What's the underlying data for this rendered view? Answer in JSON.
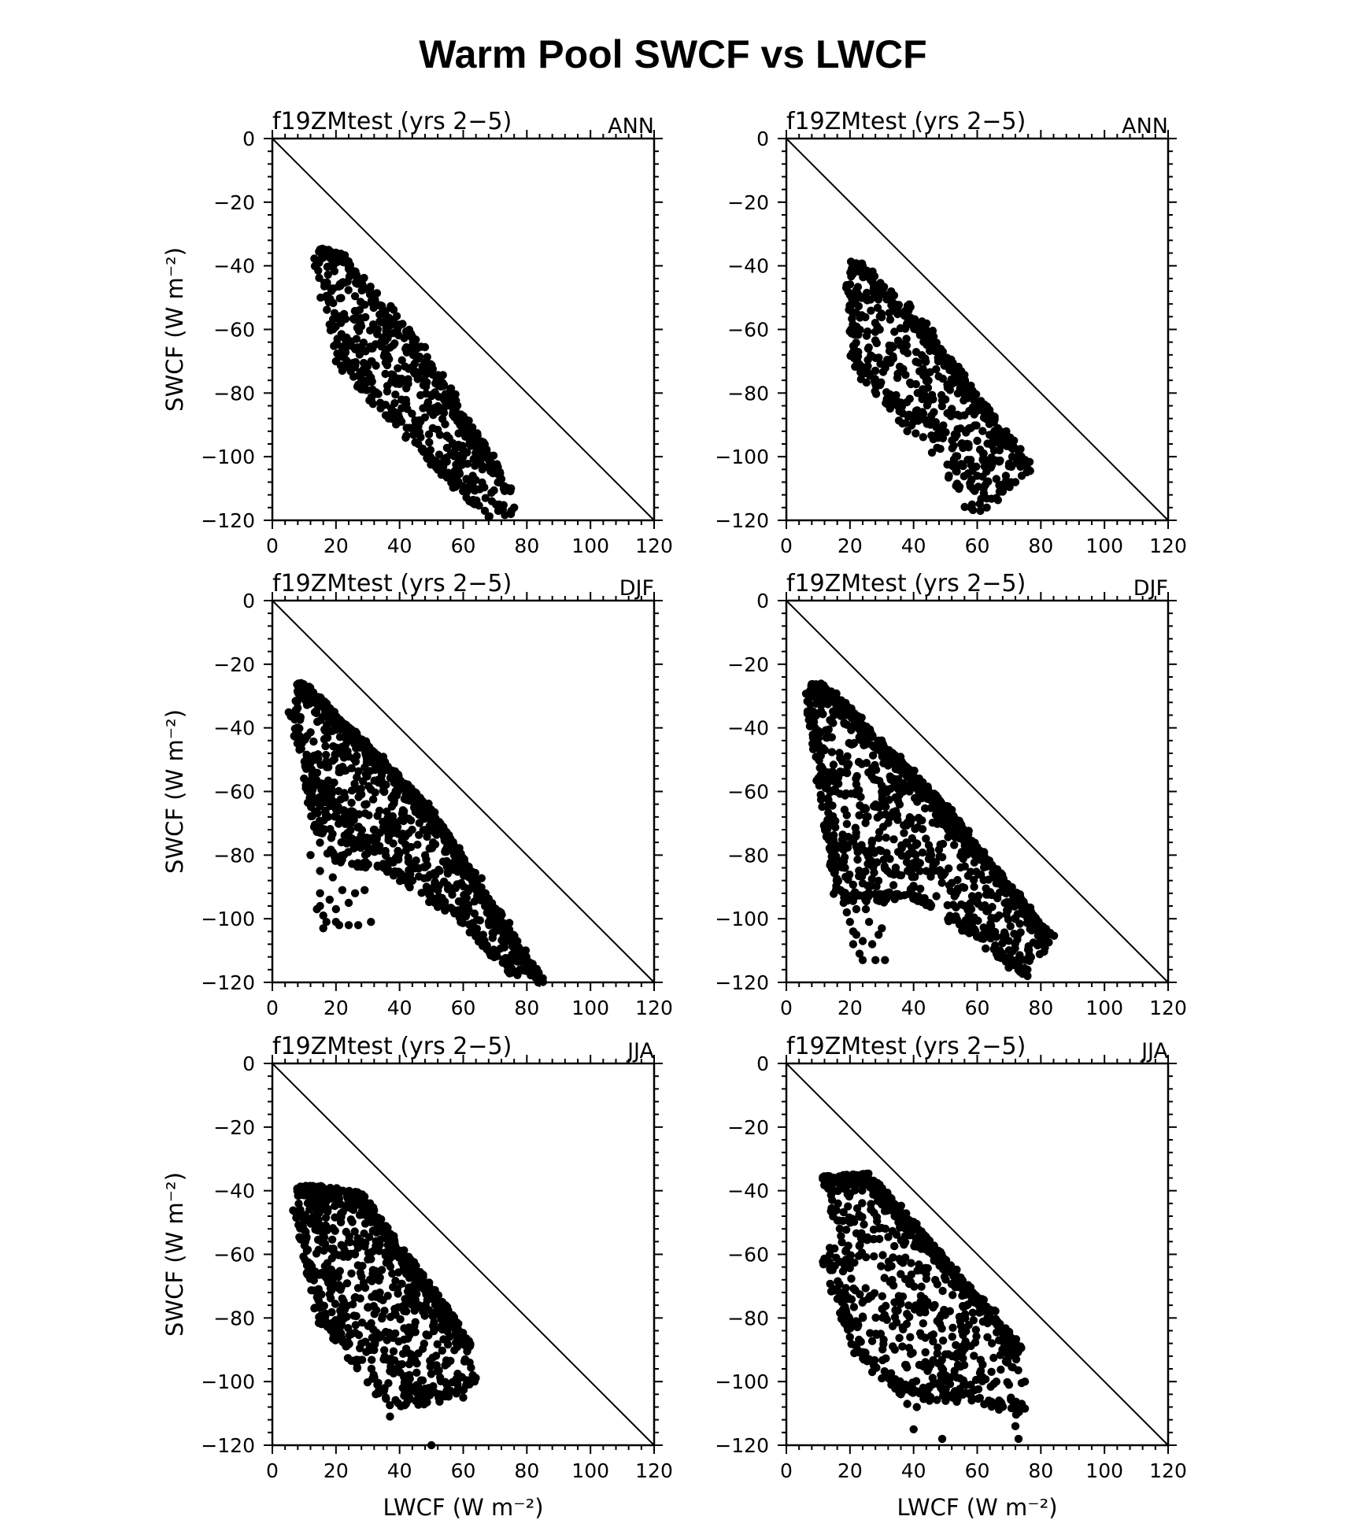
{
  "figure_title": "Warm Pool SWCF vs LWCF",
  "chart_data": [
    {
      "type": "scatter",
      "panel": "ANN",
      "title": "f19ZMtest (yrs 2−5)",
      "season": "ANN",
      "xlabel": "",
      "ylabel": "SWCF (W m⁻²)",
      "xlim": [
        0,
        120
      ],
      "ylim": [
        -120,
        0
      ],
      "xticks": [
        "0",
        "20",
        "40",
        "60",
        "80",
        "100",
        "120"
      ],
      "yticks": [
        "0",
        "−20",
        "−40",
        "−60",
        "−80",
        "−100",
        "−120"
      ],
      "reference_line": "y = −x",
      "cloud": {
        "n": 650,
        "corners": [
          [
            15,
            -34
          ],
          [
            22,
            -36
          ],
          [
            70,
            -100
          ],
          [
            76,
            -119
          ],
          [
            67,
            -119
          ],
          [
            20,
            -72
          ],
          [
            19,
            -63
          ],
          [
            15,
            -38
          ]
        ],
        "front": [
          [
            15,
            -34
          ],
          [
            22,
            -36
          ],
          [
            45,
            -62
          ],
          [
            75,
            -110
          ]
        ],
        "back": [
          [
            14,
            -38
          ],
          [
            20,
            -65
          ],
          [
            45,
            -95
          ],
          [
            67,
            -119
          ]
        ],
        "edge": 0.55
      },
      "extra": [
        [
          20,
          -70
        ],
        [
          22,
          -73
        ],
        [
          28,
          -77
        ],
        [
          38,
          -88
        ],
        [
          40,
          -88
        ],
        [
          54,
          -101
        ],
        [
          57,
          -99
        ],
        [
          61,
          -107
        ],
        [
          63,
          -106
        ],
        [
          66,
          -104
        ],
        [
          68,
          -101
        ],
        [
          70,
          -103
        ],
        [
          72,
          -107
        ],
        [
          73,
          -110
        ],
        [
          67,
          -113
        ],
        [
          69,
          -114
        ],
        [
          71,
          -117
        ],
        [
          68,
          -119
        ],
        [
          75,
          -118
        ],
        [
          76,
          -116
        ],
        [
          59,
          -97
        ],
        [
          62,
          -96
        ],
        [
          65,
          -99
        ]
      ]
    },
    {
      "type": "scatter",
      "panel": "ANN",
      "title": "f19ZMtest (yrs 2−5)",
      "season": "ANN",
      "xlabel": "",
      "ylabel": "",
      "xlim": [
        0,
        120
      ],
      "ylim": [
        -120,
        0
      ],
      "xticks": [
        "0",
        "20",
        "40",
        "60",
        "80",
        "100",
        "120"
      ],
      "yticks": [
        "0",
        "−20",
        "−40",
        "−60",
        "−80",
        "−100",
        "−120"
      ],
      "reference_line": "y = −x",
      "cloud": {
        "n": 600,
        "corners": [
          [
            20,
            -38
          ],
          [
            24,
            -39
          ],
          [
            56,
            -75
          ],
          [
            77,
            -104
          ],
          [
            65,
            -116
          ],
          [
            57,
            -114
          ],
          [
            22,
            -73
          ],
          [
            20,
            -62
          ]
        ],
        "front": [
          [
            20,
            -38
          ],
          [
            26,
            -39
          ],
          [
            45,
            -60
          ],
          [
            77,
            -103
          ]
        ],
        "back": [
          [
            20,
            -45
          ],
          [
            22,
            -72
          ],
          [
            45,
            -90
          ],
          [
            58,
            -116
          ]
        ],
        "edge": 0.5
      },
      "extra": [
        [
          22,
          -68
        ],
        [
          23,
          -71
        ],
        [
          25,
          -73
        ],
        [
          36,
          -85
        ],
        [
          38,
          -92
        ],
        [
          40,
          -89
        ],
        [
          50,
          -82
        ],
        [
          52,
          -85
        ],
        [
          56,
          -87
        ],
        [
          58,
          -91
        ],
        [
          60,
          -95
        ],
        [
          62,
          -99
        ],
        [
          64,
          -103
        ],
        [
          66,
          -107
        ],
        [
          68,
          -111
        ],
        [
          70,
          -103
        ],
        [
          72,
          -108
        ],
        [
          74,
          -106
        ],
        [
          75,
          -101
        ],
        [
          76,
          -104
        ],
        [
          58,
          -116
        ],
        [
          61,
          -117
        ],
        [
          63,
          -116
        ],
        [
          66,
          -113
        ],
        [
          69,
          -106
        ],
        [
          71,
          -100
        ],
        [
          60,
          -106
        ],
        [
          62,
          -110
        ],
        [
          57,
          -101
        ],
        [
          55,
          -96
        ],
        [
          53,
          -94
        ],
        [
          67,
          -98
        ],
        [
          65,
          -95
        ]
      ]
    },
    {
      "type": "scatter",
      "panel": "DJF",
      "title": "f19ZMtest (yrs 2−5)",
      "season": "DJF",
      "xlabel": "",
      "ylabel": "SWCF (W m⁻²)",
      "xlim": [
        0,
        120
      ],
      "ylim": [
        -120,
        0
      ],
      "xticks": [
        "0",
        "20",
        "40",
        "60",
        "80",
        "100",
        "120"
      ],
      "yticks": [
        "0",
        "−20",
        "−40",
        "−60",
        "−80",
        "−100",
        "−120"
      ],
      "reference_line": "y = −x",
      "cloud": {
        "n": 1100,
        "corners": [
          [
            8,
            -25
          ],
          [
            11,
            -26
          ],
          [
            50,
            -65
          ],
          [
            80,
            -112
          ],
          [
            84,
            -119
          ],
          [
            75,
            -117
          ],
          [
            60,
            -100
          ],
          [
            40,
            -86
          ],
          [
            27,
            -80
          ],
          [
            16,
            -79
          ],
          [
            6,
            -33
          ]
        ],
        "front": [
          [
            8,
            -25
          ],
          [
            11,
            -26
          ],
          [
            50,
            -65
          ],
          [
            85,
            -119
          ]
        ],
        "back": [
          [
            6,
            -33
          ],
          [
            16,
            -79
          ],
          [
            40,
            -86
          ],
          [
            60,
            -100
          ],
          [
            76,
            -117
          ]
        ],
        "edge": 0.45
      },
      "extra": [
        [
          12,
          -80
        ],
        [
          15,
          -85
        ],
        [
          15,
          -92
        ],
        [
          14,
          -97
        ],
        [
          16,
          -99
        ],
        [
          17,
          -101
        ],
        [
          18,
          -94
        ],
        [
          15,
          -96
        ],
        [
          20,
          -101
        ],
        [
          21,
          -102
        ],
        [
          24,
          -102
        ],
        [
          27,
          -102
        ],
        [
          31,
          -101
        ],
        [
          19,
          -87
        ],
        [
          22,
          -91
        ],
        [
          26,
          -92
        ],
        [
          29,
          -91
        ],
        [
          16,
          -103
        ],
        [
          24,
          -95
        ],
        [
          20,
          -97
        ]
      ]
    },
    {
      "type": "scatter",
      "panel": "DJF",
      "title": "f19ZMtest (yrs 2−5)",
      "season": "DJF",
      "xlabel": "",
      "ylabel": "",
      "xlim": [
        0,
        120
      ],
      "ylim": [
        -120,
        0
      ],
      "xticks": [
        "0",
        "20",
        "40",
        "60",
        "80",
        "100",
        "120"
      ],
      "yticks": [
        "0",
        "−20",
        "−40",
        "−60",
        "−80",
        "−100",
        "−120"
      ],
      "reference_line": "y = −x",
      "cloud": {
        "n": 1200,
        "corners": [
          [
            8,
            -25
          ],
          [
            12,
            -26
          ],
          [
            50,
            -64
          ],
          [
            83,
            -105
          ],
          [
            80,
            -118
          ],
          [
            73,
            -118
          ],
          [
            60,
            -105
          ],
          [
            40,
            -93
          ],
          [
            25,
            -97
          ],
          [
            16,
            -93
          ],
          [
            7,
            -30
          ]
        ],
        "front": [
          [
            8,
            -25
          ],
          [
            12,
            -26
          ],
          [
            50,
            -64
          ],
          [
            83,
            -105
          ]
        ],
        "back": [
          [
            7,
            -30
          ],
          [
            16,
            -93
          ],
          [
            40,
            -93
          ],
          [
            60,
            -105
          ],
          [
            76,
            -118
          ]
        ],
        "edge": 0.45
      },
      "extra": [
        [
          16,
          -88
        ],
        [
          17,
          -91
        ],
        [
          18,
          -95
        ],
        [
          20,
          -101
        ],
        [
          21,
          -104
        ],
        [
          22,
          -105
        ],
        [
          23,
          -111
        ],
        [
          24,
          -113
        ],
        [
          28,
          -113
        ],
        [
          31,
          -113
        ],
        [
          19,
          -98
        ],
        [
          22,
          -97
        ],
        [
          25,
          -97
        ],
        [
          26,
          -101
        ],
        [
          29,
          -105
        ],
        [
          30,
          -103
        ],
        [
          21,
          -108
        ],
        [
          24,
          -107
        ],
        [
          27,
          -108
        ]
      ]
    },
    {
      "type": "scatter",
      "panel": "JJA",
      "title": "f19ZMtest (yrs 2−5)",
      "season": "JJA",
      "xlabel": "LWCF (W m⁻²)",
      "ylabel": "SWCF (W m⁻²)",
      "xlim": [
        0,
        120
      ],
      "ylim": [
        -120,
        0
      ],
      "xticks": [
        "0",
        "20",
        "40",
        "60",
        "80",
        "100",
        "120"
      ],
      "yticks": [
        "0",
        "−20",
        "−40",
        "−60",
        "−80",
        "−100",
        "−120"
      ],
      "reference_line": "y = −x",
      "cloud": {
        "n": 950,
        "corners": [
          [
            8,
            -38
          ],
          [
            15,
            -38
          ],
          [
            20,
            -40
          ],
          [
            28,
            -40
          ],
          [
            62,
            -86
          ],
          [
            64,
            -99
          ],
          [
            55,
            -105
          ],
          [
            42,
            -106
          ],
          [
            37,
            -107
          ],
          [
            25,
            -92
          ],
          [
            15,
            -79
          ],
          [
            8,
            -46
          ]
        ],
        "front": [
          [
            8,
            -38
          ],
          [
            15,
            -38
          ],
          [
            27,
            -40
          ],
          [
            62,
            -86
          ]
        ],
        "back": [
          [
            8,
            -46
          ],
          [
            15,
            -79
          ],
          [
            25,
            -92
          ],
          [
            37,
            -107
          ],
          [
            55,
            -105
          ],
          [
            64,
            -99
          ]
        ],
        "edge": 0.4
      },
      "extra": [
        [
          37,
          -111
        ],
        [
          50,
          -120
        ],
        [
          42,
          -107
        ],
        [
          45,
          -106
        ],
        [
          47,
          -103
        ],
        [
          52,
          -104
        ],
        [
          55,
          -101
        ],
        [
          60,
          -105
        ],
        [
          63,
          -98
        ],
        [
          62,
          -94
        ],
        [
          41,
          -102
        ],
        [
          33,
          -101
        ],
        [
          38,
          -97
        ],
        [
          35,
          -93
        ],
        [
          31,
          -90
        ],
        [
          28,
          -88
        ],
        [
          25,
          -85
        ]
      ]
    },
    {
      "type": "scatter",
      "panel": "JJA",
      "title": "f19ZMtest (yrs 2−5)",
      "season": "JJA",
      "xlabel": "LWCF (W m⁻²)",
      "ylabel": "",
      "xlim": [
        0,
        120
      ],
      "ylim": [
        -120,
        0
      ],
      "xticks": [
        "0",
        "20",
        "40",
        "60",
        "80",
        "100",
        "120"
      ],
      "yticks": [
        "0",
        "−20",
        "−40",
        "−60",
        "−80",
        "−100",
        "−120"
      ],
      "reference_line": "y = −x",
      "cloud": {
        "n": 900,
        "corners": [
          [
            11,
            -35
          ],
          [
            18,
            -35
          ],
          [
            26,
            -34
          ],
          [
            55,
            -67
          ],
          [
            74,
            -89
          ],
          [
            75,
            -100
          ],
          [
            72,
            -110
          ],
          [
            60,
            -105
          ],
          [
            45,
            -105
          ],
          [
            35,
            -102
          ],
          [
            22,
            -90
          ],
          [
            12,
            -60
          ]
        ],
        "front": [
          [
            11,
            -35
          ],
          [
            26,
            -34
          ],
          [
            55,
            -67
          ],
          [
            74,
            -89
          ]
        ],
        "back": [
          [
            12,
            -60
          ],
          [
            22,
            -90
          ],
          [
            35,
            -102
          ],
          [
            45,
            -105
          ],
          [
            60,
            -105
          ],
          [
            74,
            -110
          ]
        ],
        "edge": 0.45
      },
      "extra": [
        [
          40,
          -115
        ],
        [
          49,
          -118
        ],
        [
          73,
          -118
        ],
        [
          72,
          -114
        ],
        [
          74,
          -107
        ],
        [
          75,
          -100
        ],
        [
          70,
          -101
        ],
        [
          66,
          -100
        ],
        [
          62,
          -99
        ],
        [
          58,
          -101
        ],
        [
          53,
          -103
        ],
        [
          50,
          -104
        ],
        [
          45,
          -106
        ],
        [
          41,
          -108
        ],
        [
          38,
          -107
        ],
        [
          36,
          -104
        ],
        [
          33,
          -101
        ],
        [
          30,
          -99
        ],
        [
          27,
          -97
        ],
        [
          25,
          -93
        ],
        [
          22,
          -89
        ],
        [
          20,
          -86
        ]
      ]
    }
  ]
}
